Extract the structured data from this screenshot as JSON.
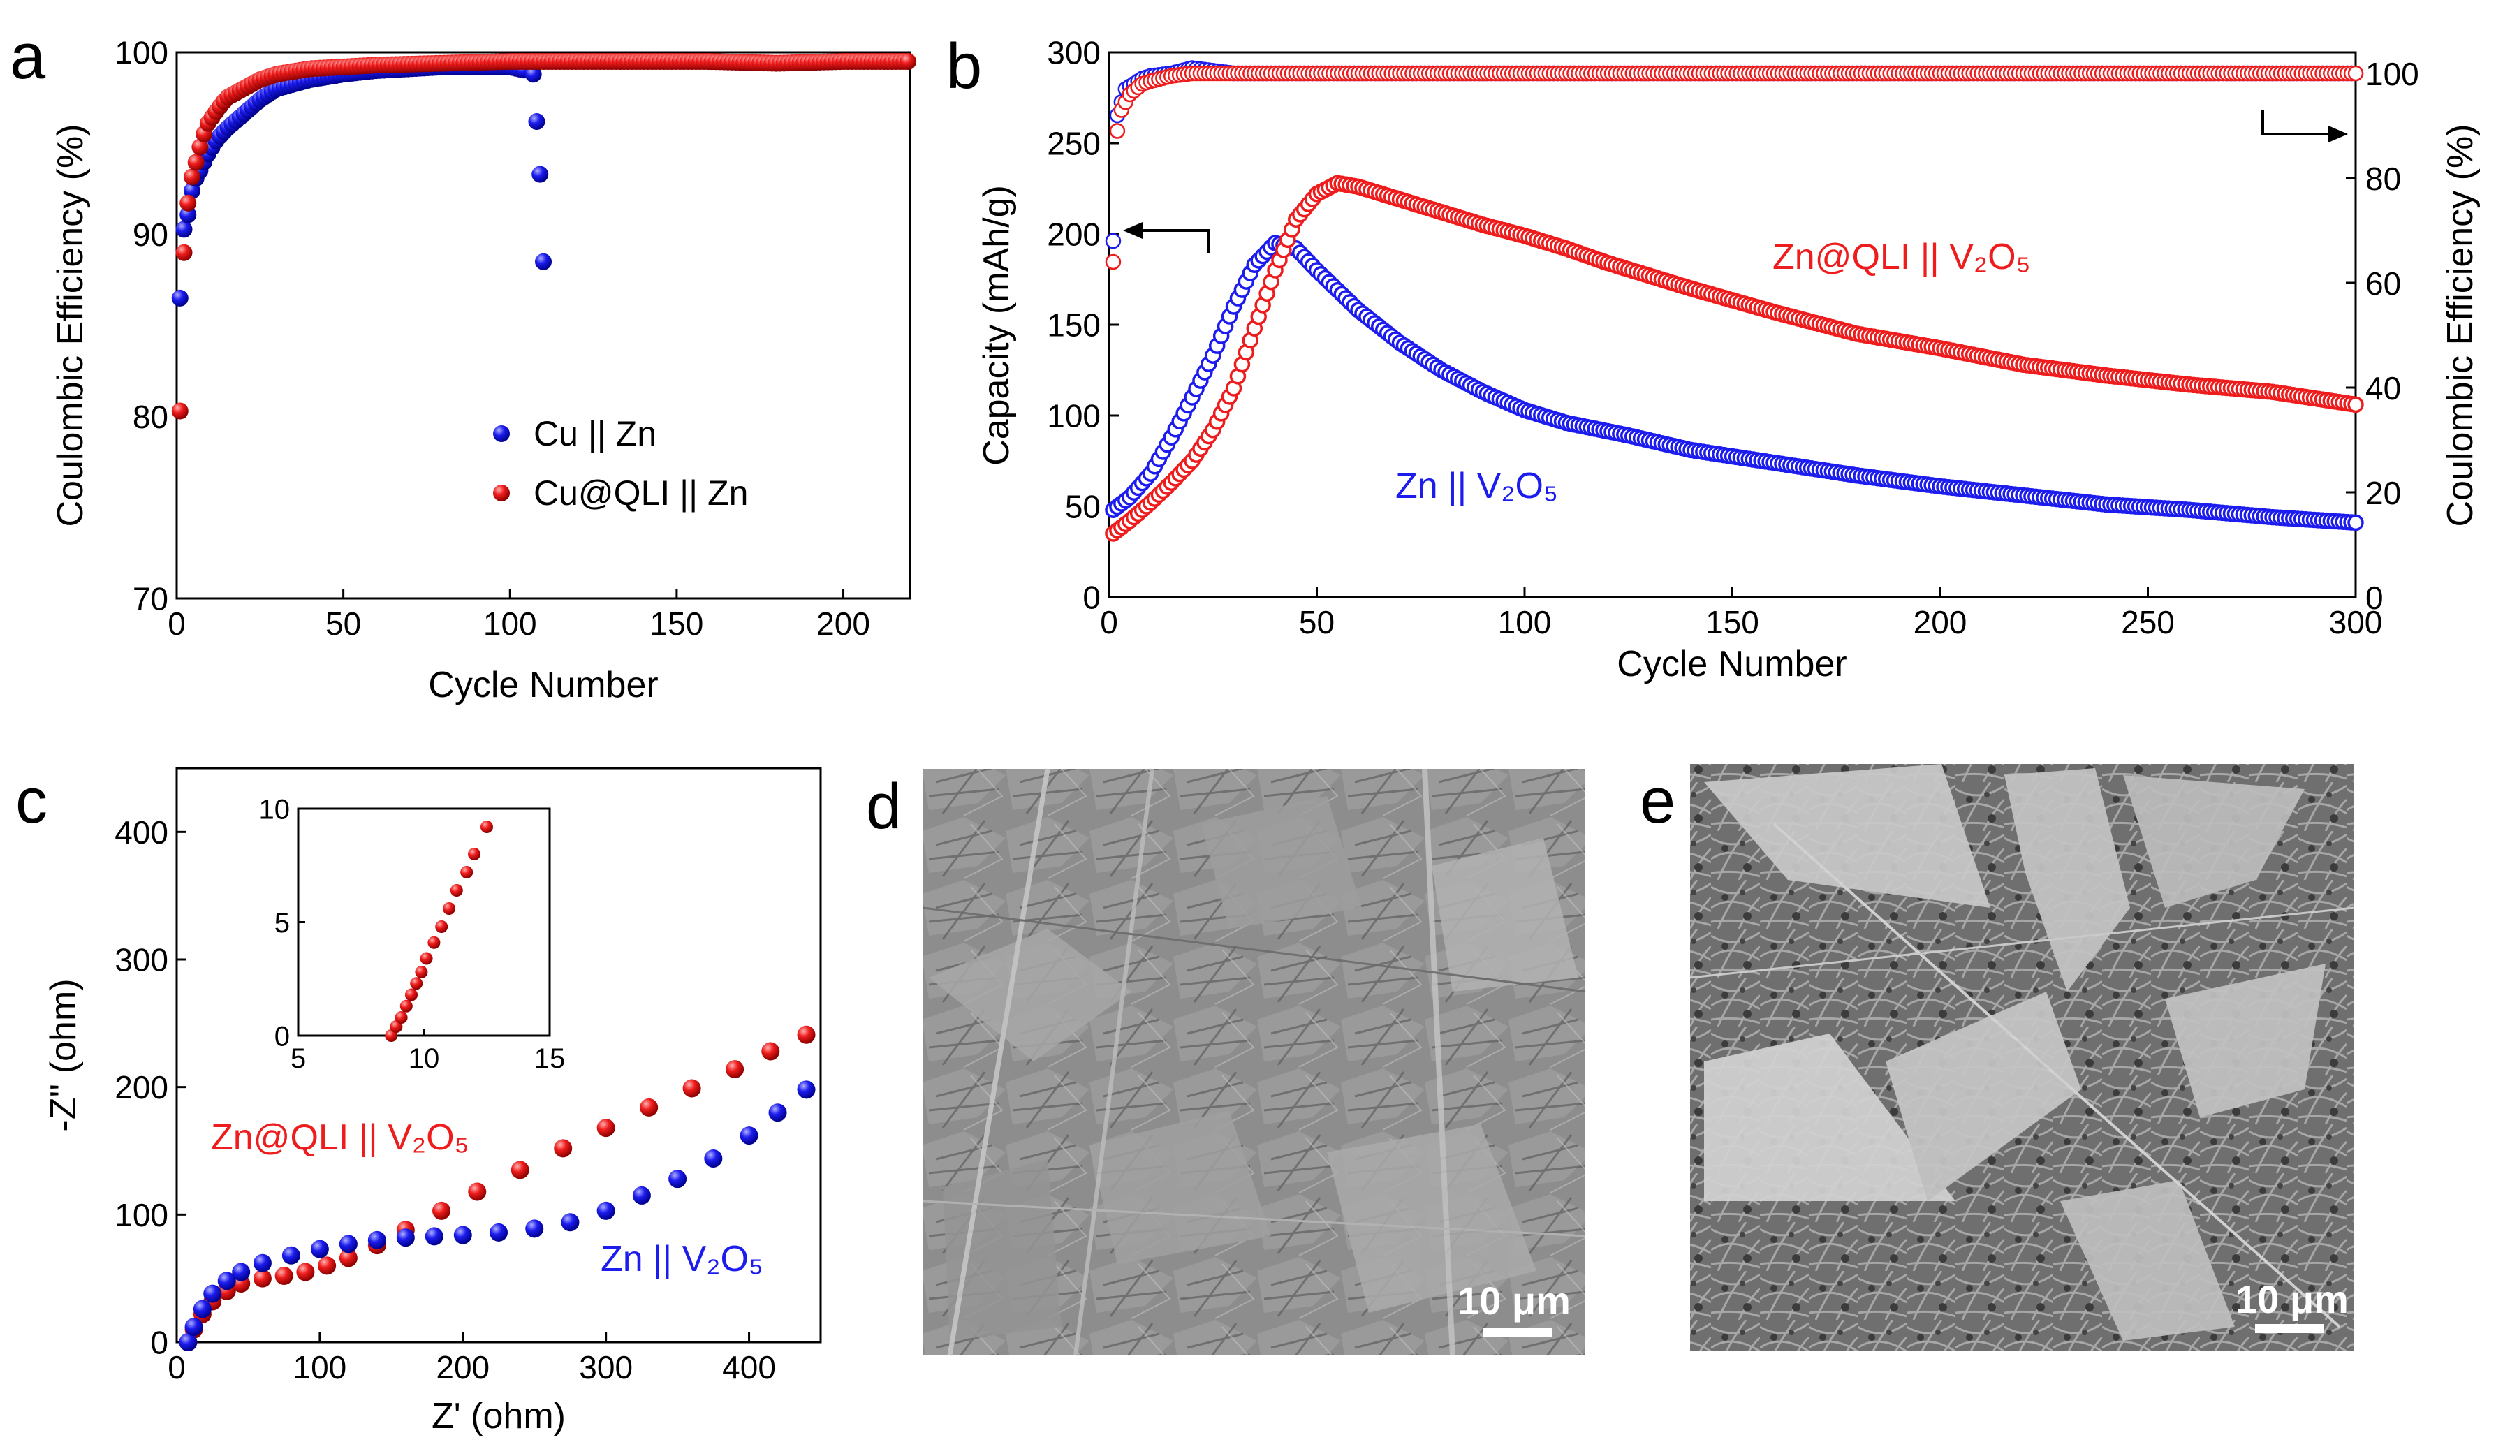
{
  "colors": {
    "red": "#ee1c1c",
    "blue": "#1c1cee",
    "sem_d": "#8a8a8a",
    "sem_e": "#7c7c7c"
  },
  "panels": {
    "a": "a",
    "b": "b",
    "c": "c",
    "d": "d",
    "e": "e"
  },
  "chart_data": [
    {
      "id": "a",
      "type": "scatter",
      "xlabel": "Cycle Number",
      "ylabel": "Coulombic Efficiency (%)",
      "xlim": [
        0,
        220
      ],
      "ylim": [
        70,
        100
      ],
      "xticks": [
        "0",
        "50",
        "100",
        "150",
        "200"
      ],
      "yticks": [
        "70",
        "80",
        "90",
        "100"
      ],
      "legend": {
        "placement": "lower-right",
        "items": [
          "Cu || Zn",
          "Cu@QLI || Zn"
        ]
      },
      "series": [
        {
          "name": "Cu || Zn",
          "color": "blue",
          "x": [
            1,
            2,
            3,
            4,
            5,
            7,
            9,
            12,
            15,
            20,
            25,
            30,
            40,
            50,
            60,
            70,
            80,
            90,
            100,
            105,
            107,
            108,
            109,
            110
          ],
          "y": [
            86.5,
            90.2,
            90.6,
            91.8,
            92.8,
            93.5,
            94.3,
            95.2,
            95.8,
            96.6,
            97.4,
            98.0,
            98.5,
            98.8,
            99.0,
            99.1,
            99.2,
            99.2,
            99.2,
            99.0,
            98.8,
            96.2,
            93.3,
            88.5
          ]
        },
        {
          "name": "Cu@QLI || Zn",
          "color": "red",
          "x": [
            1,
            2,
            3,
            4,
            5,
            7,
            9,
            12,
            15,
            20,
            25,
            30,
            40,
            50,
            60,
            80,
            100,
            120,
            140,
            160,
            180,
            200,
            220
          ],
          "y": [
            80.3,
            88.5,
            91.0,
            92.8,
            93.4,
            94.8,
            96.0,
            96.8,
            97.5,
            98.0,
            98.5,
            98.8,
            99.1,
            99.2,
            99.3,
            99.4,
            99.5,
            99.5,
            99.5,
            99.5,
            99.4,
            99.5,
            99.5
          ]
        }
      ]
    },
    {
      "id": "b",
      "type": "scatter",
      "xlabel": "Cycle Number",
      "ylabel": "Capacity (mAh/g)",
      "y2label": "Coulombic Efficiency (%)",
      "xlim": [
        0,
        300
      ],
      "ylim": [
        0,
        300
      ],
      "y2lim": [
        0,
        104
      ],
      "xticks": [
        "0",
        "50",
        "100",
        "150",
        "200",
        "250",
        "300"
      ],
      "yticks": [
        "0",
        "50",
        "100",
        "150",
        "200",
        "250",
        "300"
      ],
      "y2ticks": [
        "0",
        "20",
        "40",
        "60",
        "80",
        "100"
      ],
      "annotations": [
        "Zn@QLI || V₂O₅",
        "Zn || V₂O₅"
      ],
      "series": [
        {
          "name": "Zn || V₂O₅ capacity",
          "color": "blue",
          "axis": "left",
          "x": [
            1,
            5,
            10,
            15,
            20,
            25,
            30,
            35,
            40,
            45,
            50,
            60,
            70,
            80,
            90,
            100,
            110,
            125,
            140,
            160,
            180,
            200,
            220,
            240,
            260,
            280,
            300
          ],
          "y": [
            48,
            55,
            68,
            88,
            110,
            133,
            160,
            183,
            195,
            192,
            180,
            158,
            140,
            125,
            113,
            103,
            96,
            89,
            81,
            74,
            67,
            61,
            56,
            51,
            48,
            44,
            41
          ]
        },
        {
          "name": "Zn@QLI || V₂O₅ capacity",
          "color": "red",
          "axis": "left",
          "x": [
            1,
            5,
            10,
            15,
            20,
            25,
            30,
            35,
            40,
            45,
            50,
            55,
            60,
            70,
            80,
            90,
            100,
            110,
            120,
            140,
            160,
            180,
            200,
            220,
            240,
            260,
            280,
            300
          ],
          "y": [
            35,
            42,
            52,
            63,
            75,
            92,
            115,
            148,
            180,
            208,
            222,
            228,
            226,
            219,
            212,
            205,
            199,
            192,
            184,
            170,
            157,
            145,
            137,
            128,
            122,
            117,
            113,
            106
          ]
        },
        {
          "name": "Zn || V₂O₅ CE",
          "color": "blue",
          "axis": "right",
          "x": [
            1,
            2,
            4,
            6,
            8,
            10,
            15,
            20,
            25,
            30,
            40,
            50,
            100,
            150,
            200,
            250,
            300
          ],
          "y": [
            68,
            92,
            97,
            98,
            99,
            99.5,
            100,
            101,
            100.5,
            100,
            100,
            100,
            100,
            100,
            100,
            100,
            100
          ]
        },
        {
          "name": "Zn@QLI || V₂O₅ CE",
          "color": "red",
          "axis": "right",
          "x": [
            1,
            2,
            3,
            5,
            8,
            10,
            15,
            20,
            25,
            30,
            40,
            50,
            100,
            150,
            200,
            250,
            300
          ],
          "y": [
            64,
            89,
            93,
            96,
            98,
            98.5,
            99.5,
            100,
            100,
            100,
            100,
            100,
            100,
            100,
            100,
            100,
            100
          ]
        }
      ]
    },
    {
      "id": "c",
      "type": "scatter",
      "xlabel": "Z' (ohm)",
      "ylabel": "-Z'' (ohm)",
      "xlim": [
        0,
        450
      ],
      "ylim": [
        0,
        450
      ],
      "xticks": [
        "0",
        "100",
        "200",
        "300",
        "400"
      ],
      "yticks": [
        "0",
        "100",
        "200",
        "300",
        "400"
      ],
      "annotations": [
        "Zn@QLI || V₂O₅",
        "Zn || V₂O₅"
      ],
      "series": [
        {
          "name": "Zn@QLI || V₂O₅",
          "color": "red",
          "x": [
            8,
            12,
            18,
            25,
            35,
            45,
            60,
            75,
            90,
            105,
            120,
            140,
            160,
            185,
            210,
            240,
            270,
            300,
            330,
            360,
            390,
            415,
            440
          ],
          "y": [
            0,
            10,
            22,
            32,
            40,
            46,
            50,
            52,
            55,
            60,
            66,
            76,
            88,
            103,
            118,
            135,
            152,
            168,
            184,
            199,
            214,
            228,
            241
          ]
        },
        {
          "name": "Zn || V₂O₅",
          "color": "blue",
          "x": [
            8,
            12,
            18,
            25,
            35,
            45,
            60,
            80,
            100,
            120,
            140,
            160,
            180,
            200,
            225,
            250,
            275,
            300,
            325,
            350,
            375,
            400,
            420,
            440
          ],
          "y": [
            0,
            12,
            26,
            38,
            48,
            55,
            62,
            68,
            73,
            77,
            80,
            82,
            83,
            84,
            86,
            89,
            94,
            103,
            115,
            128,
            144,
            162,
            180,
            198
          ]
        }
      ],
      "inset": {
        "xlim": [
          5,
          15
        ],
        "ylim": [
          0,
          10
        ],
        "xticks": [
          "5",
          "10",
          "15"
        ],
        "yticks": [
          "0",
          "5",
          "10"
        ],
        "series": [
          {
            "color": "red",
            "x": [
              8.7,
              8.9,
              9.1,
              9.3,
              9.5,
              9.7,
              9.9,
              10.1,
              10.4,
              10.7,
              11.0,
              11.3,
              11.7,
              12.0,
              12.5
            ],
            "y": [
              0,
              0.4,
              0.8,
              1.3,
              1.8,
              2.3,
              2.8,
              3.4,
              4.1,
              4.8,
              5.6,
              6.4,
              7.2,
              8.0,
              9.2
            ]
          }
        ]
      }
    }
  ],
  "images": {
    "d": {
      "scale_bar_label": "10 μm"
    },
    "e": {
      "scale_bar_label": "10 μm"
    }
  }
}
